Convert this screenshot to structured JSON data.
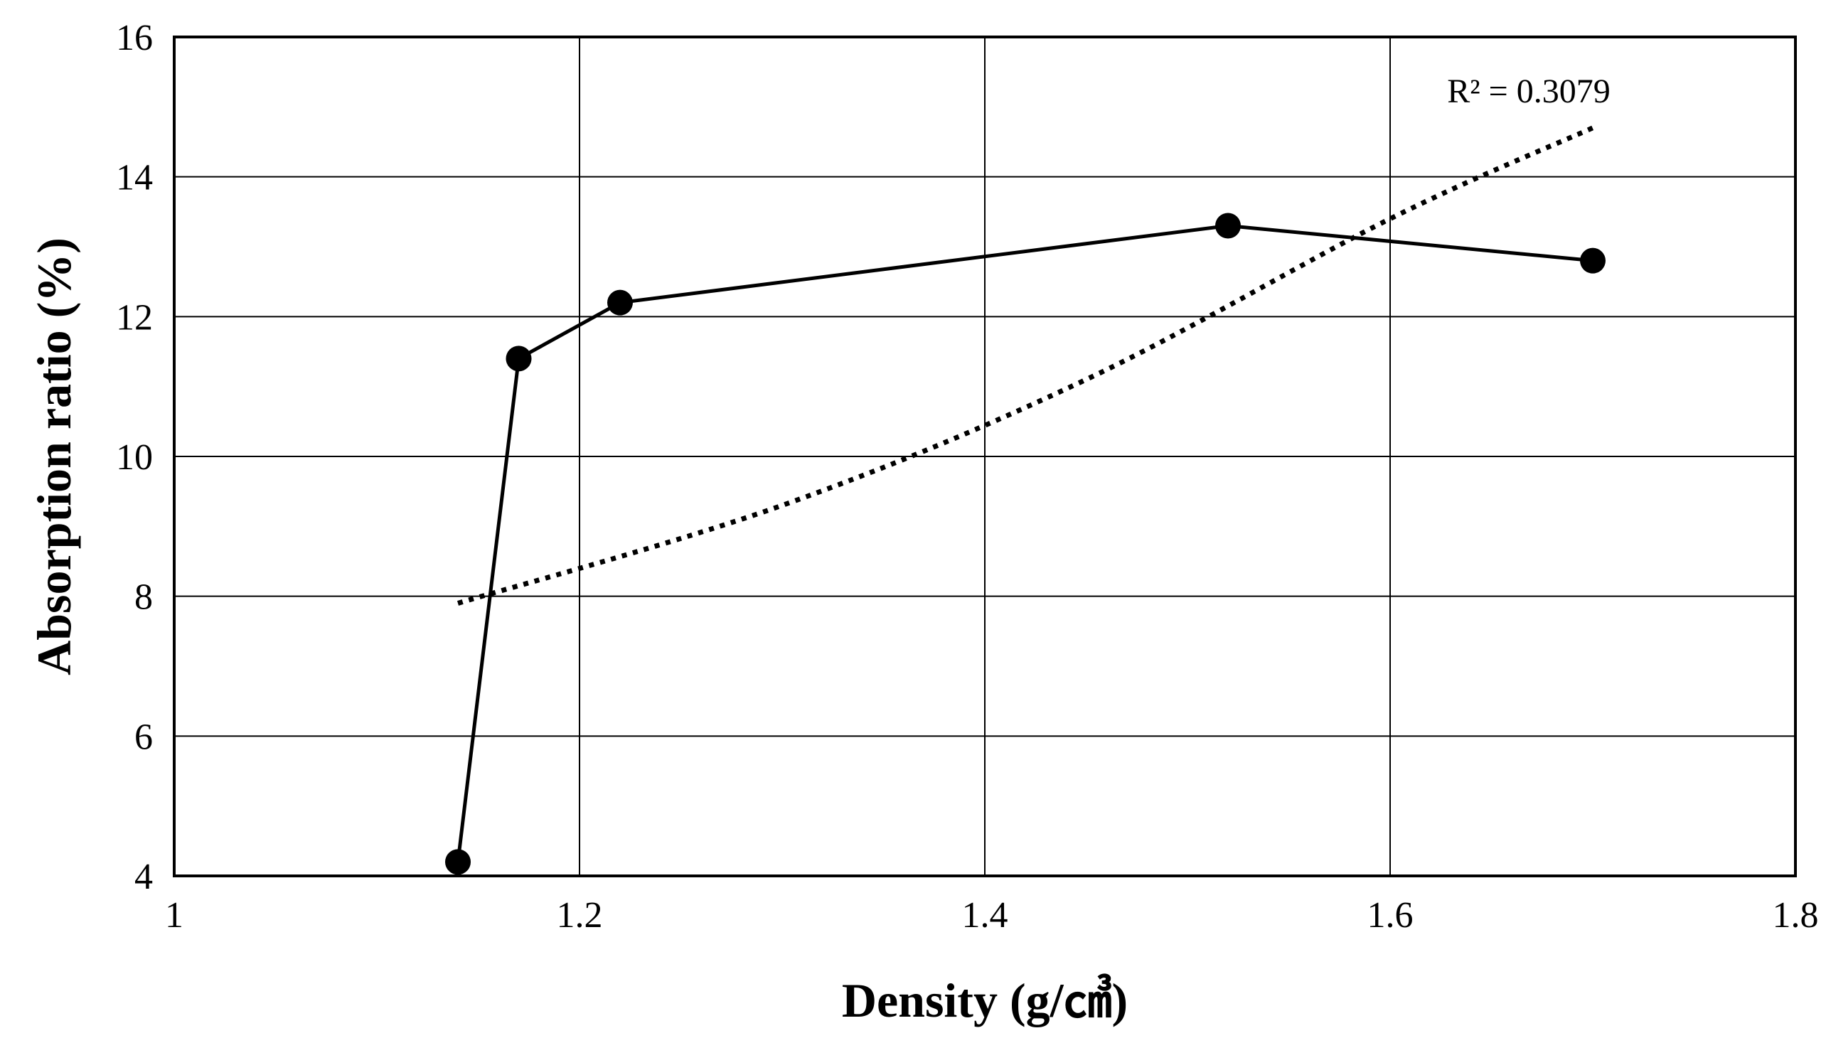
{
  "chart_data": {
    "type": "scatter",
    "title": "",
    "xlabel": "Density (g/㎤)",
    "ylabel": "Absorption ratio (%)",
    "xlim": [
      1,
      1.8
    ],
    "ylim": [
      4,
      16
    ],
    "x_ticks": [
      "1",
      "1.2",
      "1.4",
      "1.6",
      "1.8"
    ],
    "y_ticks": [
      "4",
      "6",
      "8",
      "10",
      "12",
      "14",
      "16"
    ],
    "grid": true,
    "legend": "none",
    "series": [
      {
        "name": "Absorption ratio",
        "style": "solid line with circle markers",
        "color": "#000000",
        "x": [
          1.14,
          1.17,
          1.22,
          1.52,
          1.7
        ],
        "y": [
          4.2,
          11.4,
          12.2,
          13.3,
          12.8
        ]
      }
    ],
    "trendline": {
      "type": "polynomial",
      "style": "dotted",
      "color": "#000000",
      "x_range": [
        1.14,
        1.7
      ],
      "points": [
        {
          "x": 1.14,
          "y": 7.9
        },
        {
          "x": 1.3,
          "y": 9.3
        },
        {
          "x": 1.45,
          "y": 11.1
        },
        {
          "x": 1.6,
          "y": 13.4
        },
        {
          "x": 1.7,
          "y": 14.7
        }
      ],
      "annotation": "R² = 0.3079"
    }
  }
}
